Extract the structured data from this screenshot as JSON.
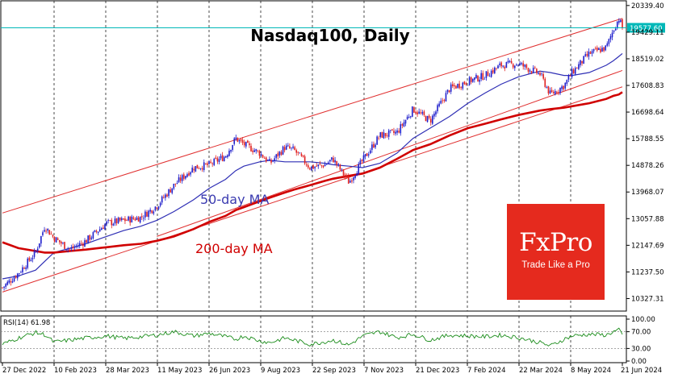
{
  "chart_data": {
    "type": "candlestick",
    "title": "Nasdaq100, Daily",
    "y_ticks": [
      "20339.40",
      "19429.11",
      "18519.02",
      "17608.83",
      "16698.64",
      "15788.55",
      "14878.26",
      "13968.07",
      "13057.88",
      "12147.69",
      "11237.50",
      "10327.31"
    ],
    "ylim": [
      9900,
      20500
    ],
    "x_ticks": [
      "27 Dec 2022",
      "10 Feb 2023",
      "28 Mar 2023",
      "11 May 2023",
      "26 Jun 2023",
      "9 Aug 2023",
      "22 Sep 2023",
      "7 Nov 2023",
      "21 Dec 2023",
      "7 Feb 2024",
      "22 Mar 2024",
      "8 May 2024",
      "21 Jun 2024"
    ],
    "current_price": "19577.60",
    "price_series": {
      "dates": [
        "2022-12-27",
        "2023-01-10",
        "2023-01-25",
        "2023-02-02",
        "2023-02-10",
        "2023-02-24",
        "2023-03-10",
        "2023-03-28",
        "2023-04-12",
        "2023-04-27",
        "2023-05-11",
        "2023-05-26",
        "2023-06-12",
        "2023-06-26",
        "2023-07-10",
        "2023-07-19",
        "2023-07-26",
        "2023-08-09",
        "2023-08-18",
        "2023-08-31",
        "2023-09-08",
        "2023-09-22",
        "2023-10-05",
        "2023-10-12",
        "2023-10-26",
        "2023-11-07",
        "2023-11-22",
        "2023-12-07",
        "2023-12-21",
        "2024-01-05",
        "2024-01-22",
        "2024-02-07",
        "2024-02-22",
        "2024-03-07",
        "2024-03-22",
        "2024-04-10",
        "2024-04-19",
        "2024-05-01",
        "2024-05-08",
        "2024-05-23",
        "2024-06-07",
        "2024-06-13",
        "2024-06-18",
        "2024-06-21"
      ],
      "close": [
        10700,
        11200,
        11900,
        12800,
        12400,
        12000,
        12300,
        12900,
        13000,
        13100,
        13500,
        14200,
        14800,
        14900,
        15200,
        15800,
        15600,
        15300,
        14950,
        15500,
        15400,
        14800,
        14900,
        15100,
        14300,
        15050,
        15900,
        16000,
        16800,
        16400,
        17500,
        17750,
        17950,
        18300,
        18350,
        18000,
        17300,
        17600,
        18050,
        18700,
        18900,
        19500,
        19900,
        19577.6
      ]
    },
    "series": [
      {
        "name": "50-day MA",
        "color": "#2f2fb5",
        "values": [
          11000,
          11100,
          11300,
          11600,
          11900,
          12050,
          12200,
          12450,
          12650,
          12800,
          13000,
          13300,
          13700,
          14100,
          14400,
          14700,
          14850,
          15000,
          15050,
          15000,
          15000,
          15000,
          14950,
          14900,
          14850,
          14800,
          14950,
          15300,
          15800,
          16150,
          16550,
          17000,
          17350,
          17650,
          17900,
          18100,
          18050,
          17950,
          17950,
          18050,
          18300,
          18450,
          18600,
          18700
        ]
      },
      {
        "name": "200-day MA",
        "color": "#d00000",
        "values": [
          12250,
          12050,
          11950,
          11900,
          11900,
          11950,
          12000,
          12080,
          12150,
          12200,
          12300,
          12450,
          12700,
          12950,
          13150,
          13350,
          13450,
          13650,
          13780,
          13950,
          14050,
          14200,
          14350,
          14420,
          14520,
          14600,
          14800,
          15100,
          15400,
          15600,
          15900,
          16150,
          16300,
          16450,
          16600,
          16750,
          16800,
          16850,
          16900,
          17000,
          17150,
          17250,
          17300,
          17380
        ]
      }
    ],
    "channel": [
      {
        "name": "upper",
        "from": {
          "date": "2022-12-27",
          "value": 13250
        },
        "to": {
          "date": "2024-06-21",
          "value": 19900
        }
      },
      {
        "name": "lower",
        "from": {
          "date": "2022-12-27",
          "value": 10550
        },
        "to": {
          "date": "2024-06-21",
          "value": 17560
        }
      },
      {
        "name": "mid",
        "from": {
          "date": "2023-05-11",
          "value": 12450
        },
        "to": {
          "date": "2024-06-21",
          "value": 18120
        }
      }
    ],
    "annotations": {
      "ma50_label": "50-day MA",
      "ma200_label": "200-day MA"
    },
    "rsi": {
      "label": "RSI(14) 61.98",
      "ticks": [
        "100.00",
        "70.00",
        "30.00",
        "0.00"
      ],
      "levels": [
        70,
        30
      ],
      "values": [
        40,
        55,
        68,
        63,
        45,
        50,
        55,
        60,
        54,
        58,
        62,
        70,
        60,
        66,
        58,
        52,
        60,
        48,
        44,
        55,
        50,
        40,
        46,
        50,
        38,
        60,
        70,
        56,
        64,
        50,
        62,
        60,
        58,
        62,
        56,
        44,
        36,
        52,
        60,
        64,
        62,
        70,
        74,
        61.98
      ]
    }
  },
  "watermark": {
    "brand": "FxPro",
    "tagline": "Trade Like a Pro"
  },
  "colors": {
    "up": "#1f1fcc",
    "down": "#e02020",
    "grid": "#000000",
    "price_line": "#00b8b8",
    "channel": "#e03030",
    "rsi_line": "#1a8c1a",
    "logo_bg": "#e52a1e"
  }
}
